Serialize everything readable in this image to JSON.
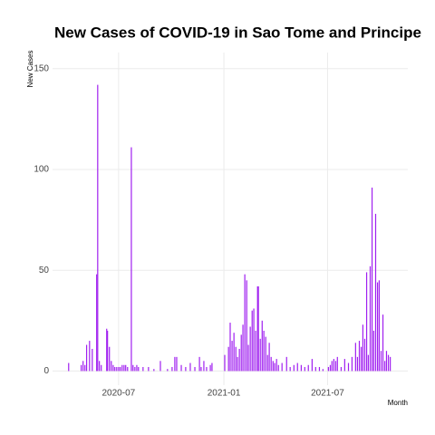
{
  "chart_data": {
    "type": "bar",
    "title": "New Cases of COVID-19 in Sao Tome and Principe",
    "x_label": "Month",
    "y_label": "New Cases",
    "color": "#a020f0",
    "grid": true,
    "xlim": [
      2020.18,
      2021.88
    ],
    "ylim": [
      -7,
      158
    ],
    "xticks": [
      {
        "value": 2020.496,
        "label": "2020-07"
      },
      {
        "value": 2021,
        "label": "2021-01"
      },
      {
        "value": 2021.496,
        "label": "2021-07"
      }
    ],
    "yticks": [
      0,
      50,
      100,
      150
    ],
    "x": [
      2020.257,
      2020.317,
      2020.326,
      2020.335,
      2020.343,
      2020.357,
      2020.37,
      2020.391,
      2020.396,
      2020.404,
      2020.413,
      2020.439,
      2020.443,
      2020.452,
      2020.461,
      2020.47,
      2020.478,
      2020.487,
      2020.496,
      2020.504,
      2020.513,
      2020.522,
      2020.53,
      2020.539,
      2020.557,
      2020.565,
      2020.574,
      2020.583,
      2020.591,
      2020.613,
      2020.639,
      2020.665,
      2020.696,
      2020.73,
      2020.752,
      2020.765,
      2020.774,
      2020.796,
      2020.817,
      2020.839,
      2020.861,
      2020.883,
      2020.891,
      2020.904,
      2020.917,
      2020.935,
      2020.943,
      2021.004,
      2021.022,
      2021.03,
      2021.039,
      2021.048,
      2021.057,
      2021.065,
      2021.074,
      2021.083,
      2021.091,
      2021.1,
      2021.109,
      2021.117,
      2021.126,
      2021.135,
      2021.143,
      2021.152,
      2021.161,
      2021.165,
      2021.174,
      2021.183,
      2021.191,
      2021.2,
      2021.209,
      2021.217,
      2021.226,
      2021.235,
      2021.243,
      2021.252,
      2021.261,
      2021.278,
      2021.3,
      2021.317,
      2021.335,
      2021.352,
      2021.37,
      2021.387,
      2021.404,
      2021.422,
      2021.439,
      2021.457,
      2021.474,
      2021.5,
      2021.509,
      2021.517,
      2021.526,
      2021.535,
      2021.543,
      2021.561,
      2021.578,
      2021.596,
      2021.613,
      2021.63,
      2021.639,
      2021.648,
      2021.657,
      2021.665,
      2021.674,
      2021.683,
      2021.691,
      2021.7,
      2021.709,
      2021.717,
      2021.726,
      2021.735,
      2021.743,
      2021.752,
      2021.761,
      2021.77,
      2021.778,
      2021.787,
      2021.796
    ],
    "values": [
      4,
      3,
      5,
      3,
      13,
      15,
      11,
      48,
      142,
      5,
      3,
      21,
      20,
      12,
      5,
      3,
      2,
      2,
      2,
      2,
      3,
      3,
      3,
      2,
      111,
      3,
      2,
      3,
      2,
      2,
      2,
      1,
      5,
      1,
      2,
      7,
      7,
      3,
      2,
      4,
      2,
      7,
      2,
      5,
      2,
      3,
      4,
      8,
      12,
      24,
      15,
      19,
      12,
      7,
      11,
      18,
      23,
      48,
      45,
      13,
      22,
      30,
      31,
      20,
      42,
      42,
      16,
      25,
      20,
      17,
      8,
      14,
      7,
      5,
      4,
      6,
      3,
      4,
      7,
      2,
      3,
      4,
      3,
      2,
      3,
      6,
      2,
      2,
      1,
      2,
      3,
      5,
      6,
      5,
      7,
      2,
      6,
      4,
      7,
      14,
      7,
      15,
      12,
      23,
      16,
      49,
      8,
      52,
      91,
      20,
      78,
      44,
      45,
      10,
      28,
      5,
      10,
      8,
      7
    ]
  }
}
